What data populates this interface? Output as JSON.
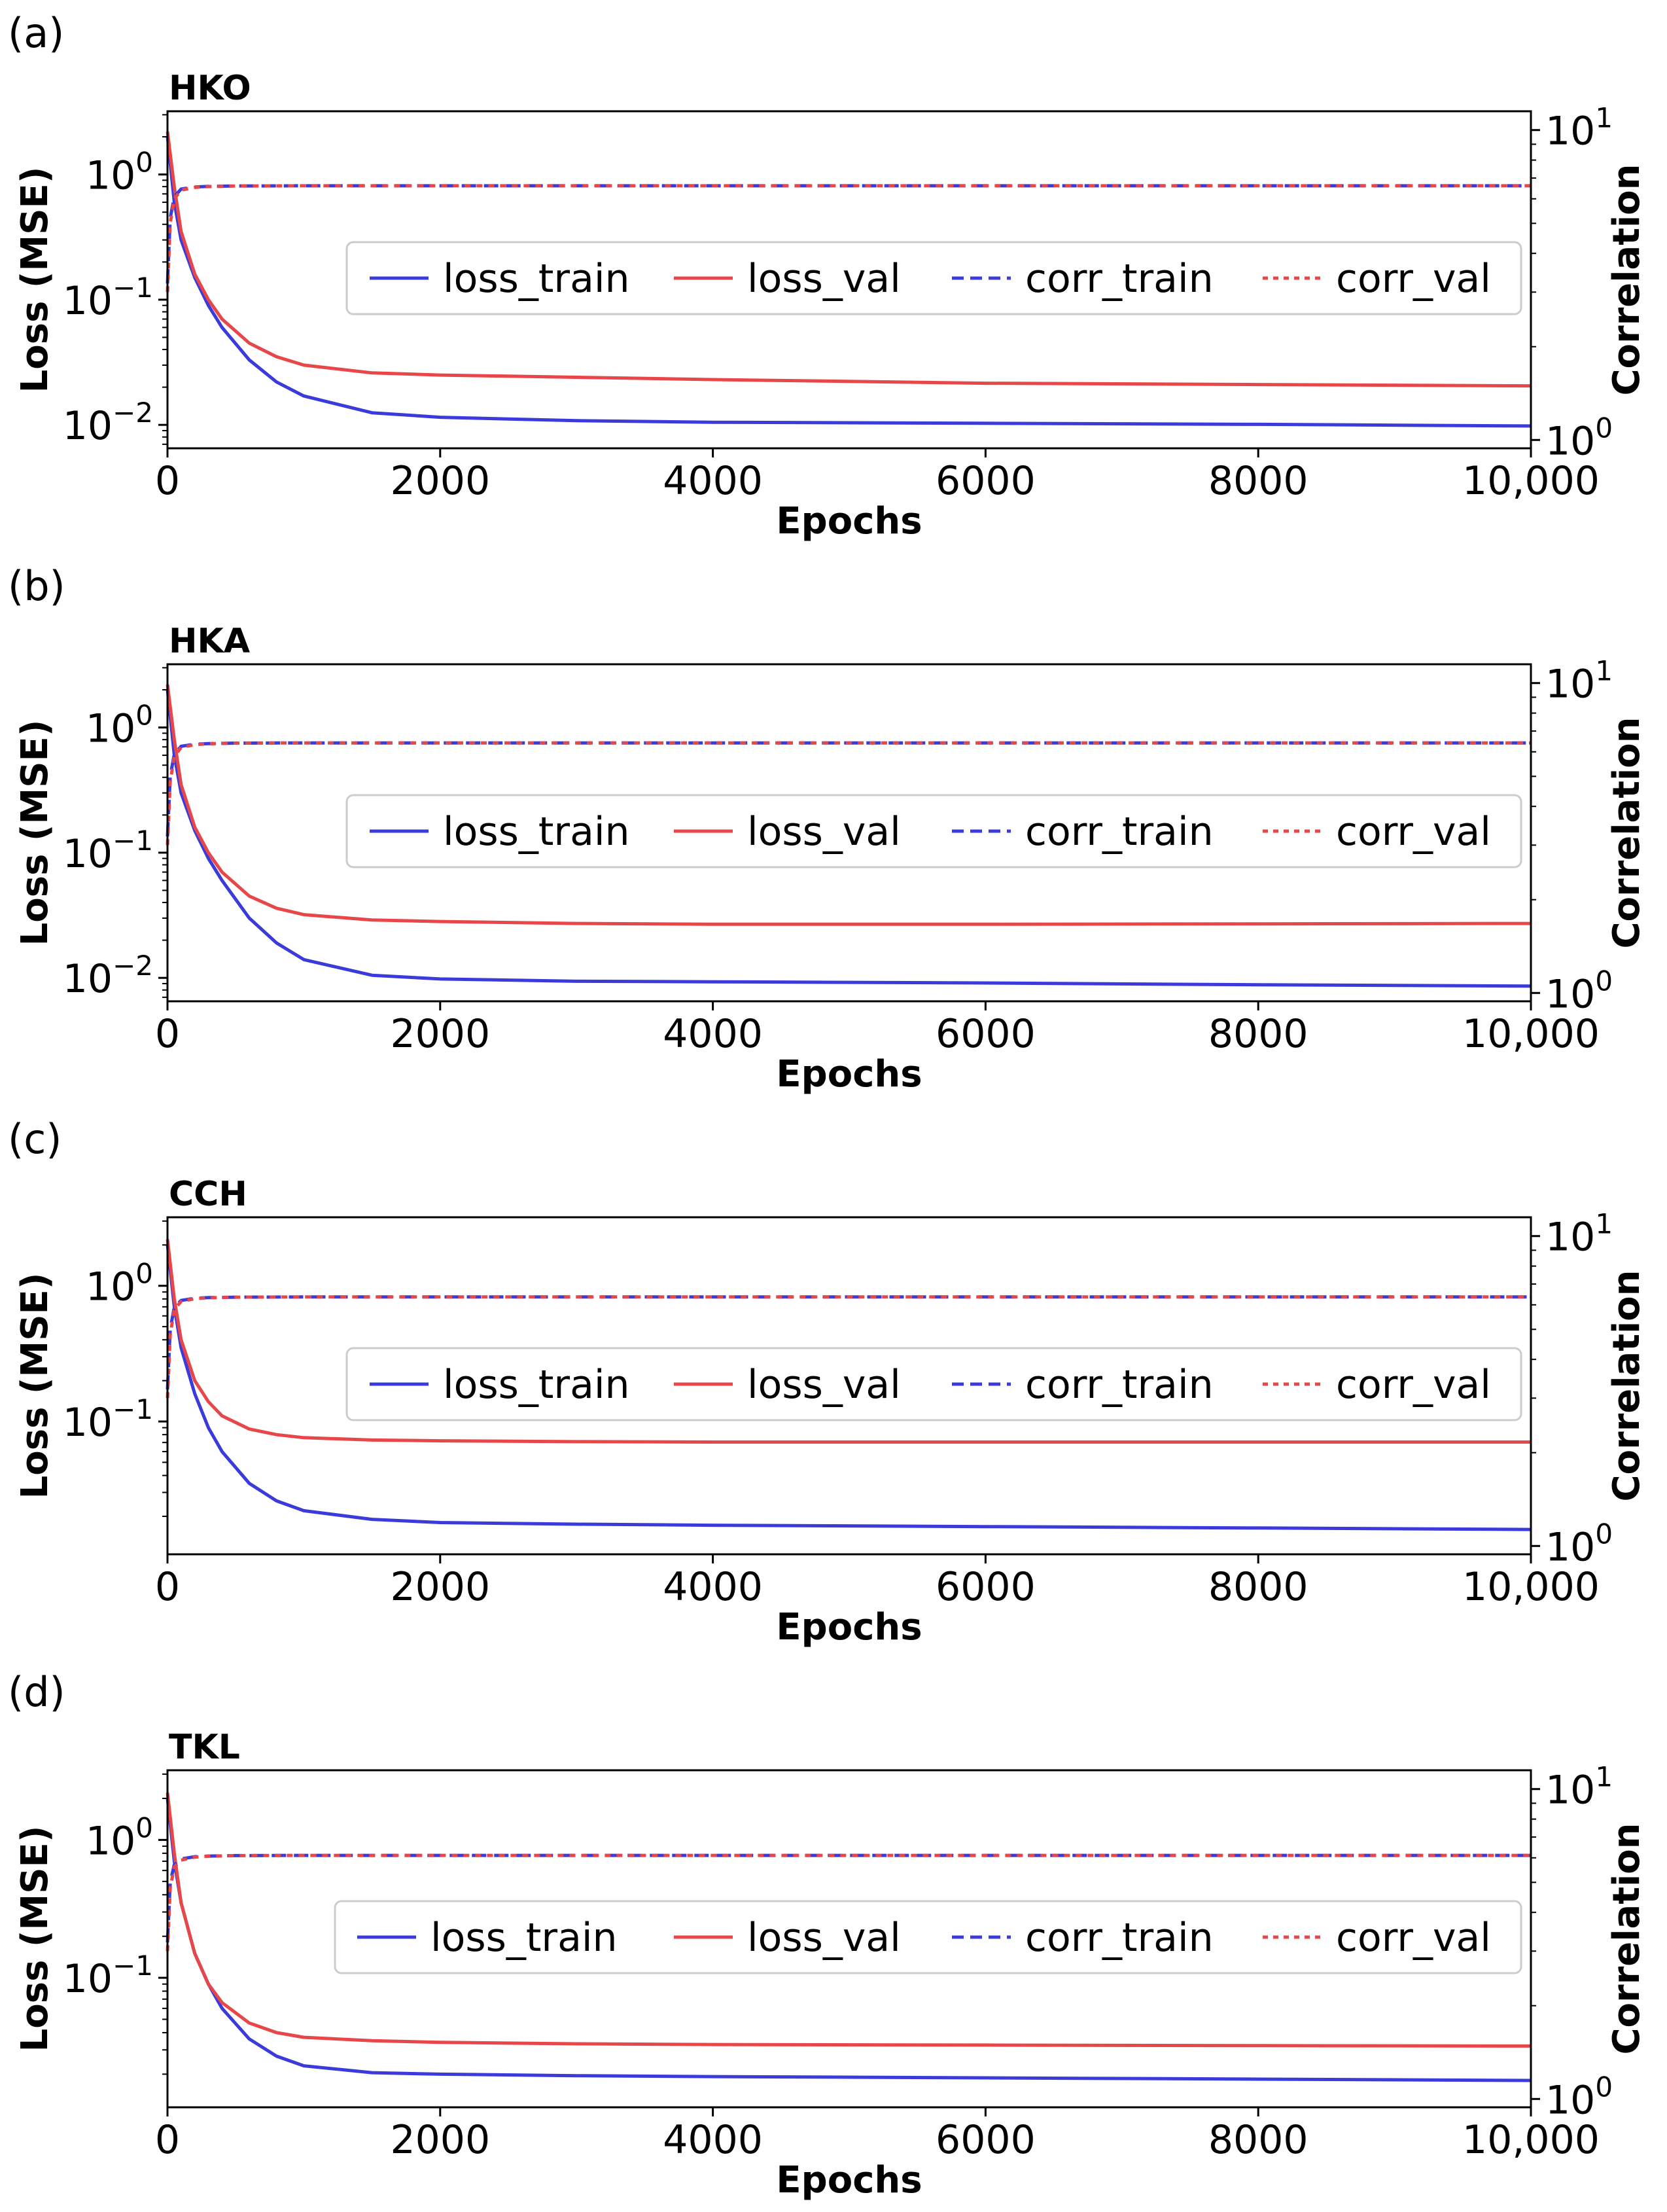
{
  "figure": {
    "panels": [
      {
        "letter": "(a)",
        "station": "HKO",
        "left_ticks": [
          {
            "base": "10",
            "exp": "0",
            "value": 1.0
          },
          {
            "base": "10",
            "exp": "−1",
            "value": 0.1
          },
          {
            "base": "10",
            "exp": "−2",
            "value": 0.01
          }
        ],
        "right_ticks": [
          {
            "base": "10",
            "exp": "1",
            "value": 10
          },
          {
            "base": "10",
            "exp": "0",
            "value": 1
          }
        ]
      },
      {
        "letter": "(b)",
        "station": "HKA",
        "left_ticks": [
          {
            "base": "10",
            "exp": "0",
            "value": 1.0
          },
          {
            "base": "10",
            "exp": "−1",
            "value": 0.1
          },
          {
            "base": "10",
            "exp": "−2",
            "value": 0.01
          }
        ],
        "right_ticks": [
          {
            "base": "10",
            "exp": "1",
            "value": 10
          },
          {
            "base": "10",
            "exp": "0",
            "value": 1
          }
        ]
      },
      {
        "letter": "(c)",
        "station": "CCH",
        "left_ticks": [
          {
            "base": "10",
            "exp": "0",
            "value": 1.0
          },
          {
            "base": "10",
            "exp": "−1",
            "value": 0.1
          }
        ],
        "right_ticks": [
          {
            "base": "10",
            "exp": "1",
            "value": 10
          },
          {
            "base": "10",
            "exp": "0",
            "value": 1
          }
        ]
      },
      {
        "letter": "(d)",
        "station": "TKL",
        "left_ticks": [
          {
            "base": "10",
            "exp": "0",
            "value": 1.0
          },
          {
            "base": "10",
            "exp": "−1",
            "value": 0.1
          }
        ],
        "right_ticks": [
          {
            "base": "10",
            "exp": "1",
            "value": 10
          },
          {
            "base": "10",
            "exp": "0",
            "value": 1
          }
        ]
      }
    ]
  },
  "chart_data": [
    {
      "type": "line",
      "title": "HKO",
      "xlabel": "Epochs",
      "ylabel": "Loss (MSE)",
      "y2label": "Correlation",
      "xlim": [
        0,
        10000
      ],
      "xticks": [
        "0",
        "2000",
        "4000",
        "6000",
        "8000",
        "10,000"
      ],
      "ylim": [
        0.0065,
        3.2
      ],
      "y2lim": [
        0.94,
        11.5
      ],
      "yscale": "log",
      "y2scale": "log",
      "legend": [
        "loss_train",
        "loss_val",
        "corr_train",
        "corr_val"
      ],
      "legend_position": "center-right",
      "series": [
        {
          "name": "loss_train",
          "axis": "left",
          "style": "solid",
          "color": "#3b3bdb",
          "x": [
            0,
            50,
            100,
            200,
            300,
            400,
            600,
            800,
            1000,
            1500,
            2000,
            3000,
            4000,
            6000,
            8000,
            10000
          ],
          "y": [
            2.0,
            0.6,
            0.3,
            0.15,
            0.09,
            0.06,
            0.033,
            0.022,
            0.017,
            0.0125,
            0.0115,
            0.0108,
            0.0105,
            0.0103,
            0.0101,
            0.0098
          ]
        },
        {
          "name": "loss_val",
          "axis": "left",
          "style": "solid",
          "color": "#e8474a",
          "x": [
            0,
            50,
            100,
            200,
            300,
            400,
            600,
            800,
            1000,
            1500,
            2000,
            3000,
            4000,
            6000,
            8000,
            10000
          ],
          "y": [
            2.2,
            0.8,
            0.35,
            0.16,
            0.1,
            0.07,
            0.045,
            0.035,
            0.03,
            0.026,
            0.025,
            0.024,
            0.023,
            0.0215,
            0.021,
            0.0205
          ]
        },
        {
          "name": "corr_train",
          "axis": "right",
          "style": "dashed",
          "color": "#3b3bdb",
          "x": [
            0,
            20,
            50,
            100,
            200,
            300,
            500,
            1000,
            2000,
            4000,
            6000,
            8000,
            10000
          ],
          "y": [
            3.2,
            5.2,
            6.1,
            6.45,
            6.55,
            6.58,
            6.6,
            6.61,
            6.61,
            6.61,
            6.61,
            6.61,
            6.61
          ]
        },
        {
          "name": "corr_val",
          "axis": "right",
          "style": "dotted",
          "color": "#e8474a",
          "x": [
            0,
            20,
            50,
            100,
            200,
            300,
            500,
            1000,
            2000,
            4000,
            6000,
            8000,
            10000
          ],
          "y": [
            3.0,
            5.0,
            6.0,
            6.4,
            6.53,
            6.57,
            6.6,
            6.61,
            6.61,
            6.61,
            6.61,
            6.61,
            6.61
          ]
        }
      ]
    },
    {
      "type": "line",
      "title": "HKA",
      "xlabel": "Epochs",
      "ylabel": "Loss (MSE)",
      "y2label": "Correlation",
      "xlim": [
        0,
        10000
      ],
      "xticks": [
        "0",
        "2000",
        "4000",
        "6000",
        "8000",
        "10,000"
      ],
      "ylim": [
        0.0065,
        3.2
      ],
      "y2lim": [
        0.94,
        11.5
      ],
      "yscale": "log",
      "y2scale": "log",
      "legend": [
        "loss_train",
        "loss_val",
        "corr_train",
        "corr_val"
      ],
      "legend_position": "center-right",
      "series": [
        {
          "name": "loss_train",
          "axis": "left",
          "style": "solid",
          "color": "#3b3bdb",
          "x": [
            0,
            50,
            100,
            200,
            300,
            400,
            600,
            800,
            1000,
            1500,
            2000,
            3000,
            4000,
            6000,
            8000,
            10000
          ],
          "y": [
            2.0,
            0.6,
            0.3,
            0.15,
            0.09,
            0.06,
            0.03,
            0.019,
            0.014,
            0.0105,
            0.0098,
            0.0094,
            0.0093,
            0.0091,
            0.0088,
            0.0086
          ]
        },
        {
          "name": "loss_val",
          "axis": "left",
          "style": "solid",
          "color": "#e8474a",
          "x": [
            0,
            50,
            100,
            200,
            300,
            400,
            600,
            800,
            1000,
            1500,
            2000,
            3000,
            4000,
            6000,
            8000,
            10000
          ],
          "y": [
            2.2,
            0.8,
            0.35,
            0.16,
            0.1,
            0.07,
            0.045,
            0.036,
            0.032,
            0.029,
            0.0282,
            0.0272,
            0.0268,
            0.0268,
            0.027,
            0.0272
          ]
        },
        {
          "name": "corr_train",
          "axis": "right",
          "style": "dashed",
          "color": "#3b3bdb",
          "x": [
            0,
            20,
            50,
            100,
            200,
            300,
            500,
            1000,
            2000,
            4000,
            6000,
            8000,
            10000
          ],
          "y": [
            3.2,
            5.0,
            5.9,
            6.25,
            6.35,
            6.38,
            6.4,
            6.41,
            6.41,
            6.41,
            6.41,
            6.41,
            6.41
          ]
        },
        {
          "name": "corr_val",
          "axis": "right",
          "style": "dotted",
          "color": "#e8474a",
          "x": [
            0,
            20,
            50,
            100,
            200,
            300,
            500,
            1000,
            2000,
            4000,
            6000,
            8000,
            10000
          ],
          "y": [
            3.0,
            4.8,
            5.8,
            6.2,
            6.33,
            6.37,
            6.4,
            6.41,
            6.41,
            6.41,
            6.41,
            6.41,
            6.41
          ]
        }
      ]
    },
    {
      "type": "line",
      "title": "CCH",
      "xlabel": "Epochs",
      "ylabel": "Loss (MSE)",
      "y2label": "Correlation",
      "xlim": [
        0,
        10000
      ],
      "xticks": [
        "0",
        "2000",
        "4000",
        "6000",
        "8000",
        "10,000"
      ],
      "ylim": [
        0.0105,
        3.2
      ],
      "y2lim": [
        0.94,
        11.5
      ],
      "yscale": "log",
      "y2scale": "log",
      "legend": [
        "loss_train",
        "loss_val",
        "corr_train",
        "corr_val"
      ],
      "legend_position": "center-right",
      "series": [
        {
          "name": "loss_train",
          "axis": "left",
          "style": "solid",
          "color": "#3b3bdb",
          "x": [
            0,
            50,
            100,
            200,
            300,
            400,
            600,
            800,
            1000,
            1500,
            2000,
            3000,
            4000,
            6000,
            8000,
            10000
          ],
          "y": [
            2.0,
            0.7,
            0.35,
            0.16,
            0.09,
            0.06,
            0.035,
            0.026,
            0.022,
            0.019,
            0.018,
            0.0175,
            0.0172,
            0.0168,
            0.0164,
            0.016
          ]
        },
        {
          "name": "loss_val",
          "axis": "left",
          "style": "solid",
          "color": "#e8474a",
          "x": [
            0,
            50,
            100,
            200,
            300,
            400,
            600,
            800,
            1000,
            1500,
            2000,
            3000,
            4000,
            6000,
            8000,
            10000
          ],
          "y": [
            2.2,
            0.8,
            0.4,
            0.2,
            0.14,
            0.11,
            0.088,
            0.08,
            0.076,
            0.073,
            0.072,
            0.071,
            0.0705,
            0.0705,
            0.0705,
            0.0705
          ]
        },
        {
          "name": "corr_train",
          "axis": "right",
          "style": "dashed",
          "color": "#3b3bdb",
          "x": [
            0,
            20,
            50,
            100,
            200,
            300,
            500,
            1000,
            2000,
            4000,
            6000,
            8000,
            10000
          ],
          "y": [
            3.2,
            5.0,
            5.9,
            6.2,
            6.3,
            6.33,
            6.35,
            6.36,
            6.36,
            6.36,
            6.36,
            6.36,
            6.36
          ]
        },
        {
          "name": "corr_val",
          "axis": "right",
          "style": "dotted",
          "color": "#e8474a",
          "x": [
            0,
            20,
            50,
            100,
            200,
            300,
            500,
            1000,
            2000,
            4000,
            6000,
            8000,
            10000
          ],
          "y": [
            3.0,
            4.8,
            5.8,
            6.15,
            6.28,
            6.32,
            6.35,
            6.36,
            6.36,
            6.36,
            6.36,
            6.36,
            6.36
          ]
        }
      ]
    },
    {
      "type": "line",
      "title": "TKL",
      "xlabel": "Epochs",
      "ylabel": "Loss (MSE)",
      "y2label": "Correlation",
      "xlim": [
        0,
        10000
      ],
      "xticks": [
        "0",
        "2000",
        "4000",
        "6000",
        "8000",
        "10,000"
      ],
      "ylim": [
        0.0115,
        3.2
      ],
      "y2lim": [
        0.94,
        11.5
      ],
      "yscale": "log",
      "y2scale": "log",
      "legend": [
        "loss_train",
        "loss_val",
        "corr_train",
        "corr_val"
      ],
      "legend_position": "center-right",
      "series": [
        {
          "name": "loss_train",
          "axis": "left",
          "style": "solid",
          "color": "#3b3bdb",
          "x": [
            0,
            50,
            100,
            200,
            300,
            400,
            600,
            800,
            1000,
            1500,
            2000,
            3000,
            4000,
            6000,
            8000,
            10000
          ],
          "y": [
            2.0,
            0.7,
            0.35,
            0.15,
            0.09,
            0.06,
            0.036,
            0.027,
            0.023,
            0.0205,
            0.02,
            0.0195,
            0.0192,
            0.0188,
            0.0184,
            0.018
          ]
        },
        {
          "name": "loss_val",
          "axis": "left",
          "style": "solid",
          "color": "#e8474a",
          "x": [
            0,
            50,
            100,
            200,
            300,
            400,
            600,
            800,
            1000,
            1500,
            2000,
            3000,
            4000,
            6000,
            8000,
            10000
          ],
          "y": [
            2.2,
            0.8,
            0.35,
            0.15,
            0.09,
            0.066,
            0.047,
            0.04,
            0.037,
            0.035,
            0.034,
            0.0332,
            0.0328,
            0.0325,
            0.0322,
            0.032
          ]
        },
        {
          "name": "corr_train",
          "axis": "right",
          "style": "dashed",
          "color": "#3b3bdb",
          "x": [
            0,
            20,
            50,
            100,
            200,
            300,
            500,
            1000,
            2000,
            4000,
            6000,
            8000,
            10000
          ],
          "y": [
            3.2,
            5.0,
            5.7,
            5.95,
            6.05,
            6.08,
            6.1,
            6.11,
            6.11,
            6.11,
            6.11,
            6.11,
            6.11
          ]
        },
        {
          "name": "corr_val",
          "axis": "right",
          "style": "dotted",
          "color": "#e8474a",
          "x": [
            0,
            20,
            50,
            100,
            200,
            300,
            500,
            1000,
            2000,
            4000,
            6000,
            8000,
            10000
          ],
          "y": [
            3.0,
            4.8,
            5.6,
            5.9,
            6.03,
            6.07,
            6.1,
            6.11,
            6.11,
            6.11,
            6.11,
            6.11,
            6.11
          ]
        }
      ]
    }
  ]
}
